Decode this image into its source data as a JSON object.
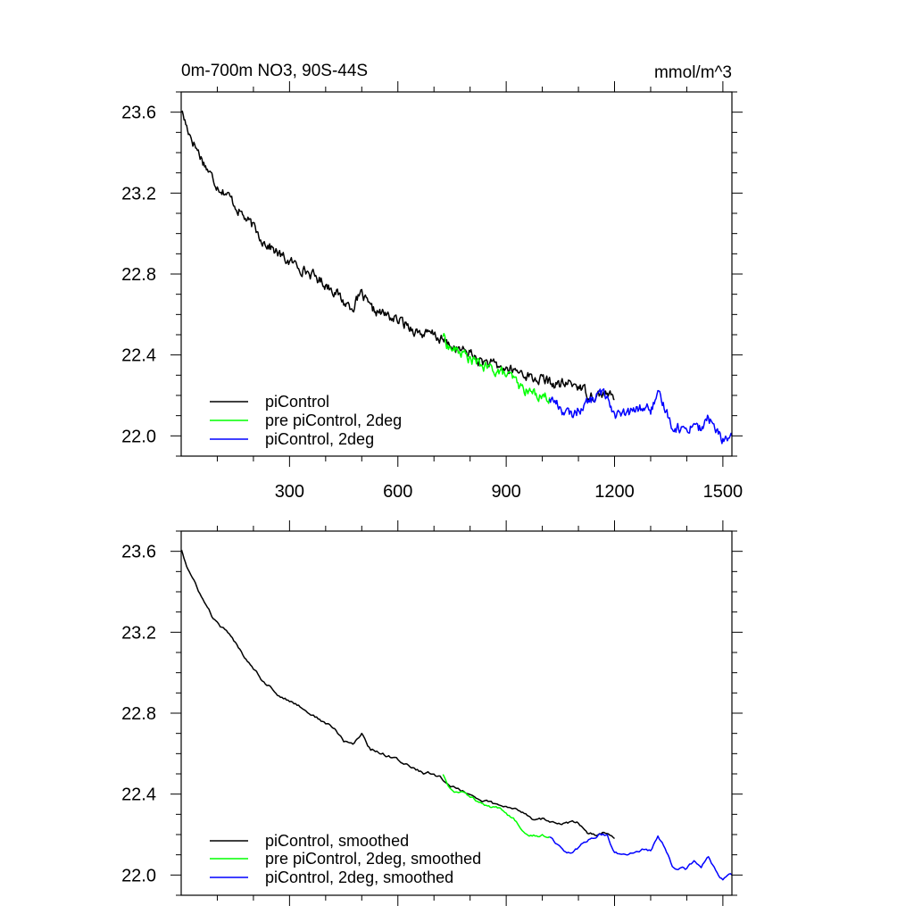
{
  "chart_data": [
    {
      "type": "line",
      "title": "0m-700m NO3, 90S-44S",
      "units": "mmol/m^3",
      "xlabel": "",
      "ylabel": "",
      "xlim": [
        0,
        1525
      ],
      "ylim": [
        21.9,
        23.7
      ],
      "xticks": [
        300,
        600,
        900,
        1200,
        1500
      ],
      "xtick_labels": [
        "300",
        "600",
        "900",
        "1200",
        "1500"
      ],
      "yticks": [
        22.0,
        22.4,
        22.8,
        23.2,
        23.6
      ],
      "ytick_labels": [
        "22.0",
        "22.4",
        "22.8",
        "23.2",
        "23.6"
      ],
      "legend_position": "bottom-left",
      "grid": false,
      "smoothed": false,
      "series": [
        {
          "name": "piControl",
          "color": "#000000",
          "x": [
            1,
            15,
            35,
            60,
            85,
            100,
            125,
            150,
            175,
            200,
            225,
            250,
            275,
            300,
            325,
            350,
            375,
            400,
            425,
            450,
            475,
            500,
            525,
            550,
            575,
            600,
            625,
            650,
            675,
            700,
            725,
            750,
            775,
            800,
            825,
            850,
            875,
            900,
            925,
            950,
            975,
            1000,
            1025,
            1050,
            1075,
            1100,
            1125,
            1150,
            1175,
            1200
          ],
          "values": [
            23.61,
            23.53,
            23.45,
            23.36,
            23.28,
            23.24,
            23.2,
            23.14,
            23.08,
            23.03,
            22.97,
            22.93,
            22.89,
            22.86,
            22.84,
            22.81,
            22.78,
            22.75,
            22.72,
            22.66,
            22.64,
            22.7,
            22.62,
            22.61,
            22.59,
            22.57,
            22.55,
            22.52,
            22.5,
            22.5,
            22.47,
            22.44,
            22.42,
            22.41,
            22.37,
            22.36,
            22.34,
            22.33,
            22.32,
            22.31,
            22.28,
            22.28,
            22.26,
            22.25,
            22.26,
            22.25,
            22.21,
            22.2,
            22.21,
            22.18
          ]
        },
        {
          "name": "pre piControl, 2deg",
          "color": "#00ff00",
          "x": [
            725,
            740,
            760,
            780,
            800,
            820,
            840,
            860,
            880,
            900,
            920,
            940,
            960,
            980,
            1000,
            1020
          ],
          "values": [
            22.5,
            22.44,
            22.42,
            22.41,
            22.38,
            22.36,
            22.34,
            22.33,
            22.32,
            22.3,
            22.28,
            22.24,
            22.22,
            22.21,
            22.2,
            22.19
          ]
        },
        {
          "name": "piControl, 2deg",
          "color": "#0000ff",
          "x": [
            1020,
            1040,
            1060,
            1080,
            1100,
            1120,
            1140,
            1160,
            1180,
            1200,
            1220,
            1240,
            1260,
            1280,
            1300,
            1320,
            1340,
            1360,
            1380,
            1400,
            1420,
            1440,
            1460,
            1480,
            1500,
            1525
          ],
          "values": [
            22.19,
            22.16,
            22.12,
            22.1,
            22.13,
            22.16,
            22.18,
            22.21,
            22.2,
            22.11,
            22.1,
            22.11,
            22.13,
            22.14,
            22.13,
            22.19,
            22.14,
            22.05,
            22.04,
            22.03,
            22.07,
            22.03,
            22.09,
            22.03,
            21.98,
            22.0
          ]
        }
      ]
    },
    {
      "type": "line",
      "title": "",
      "units": "",
      "xlabel": "",
      "ylabel": "",
      "xlim": [
        0,
        1525
      ],
      "ylim": [
        21.9,
        23.7
      ],
      "xticks": [
        300,
        600,
        900,
        1200,
        1500
      ],
      "xtick_labels": [],
      "yticks": [
        22.0,
        22.4,
        22.8,
        23.2,
        23.6
      ],
      "ytick_labels": [
        "22.0",
        "22.4",
        "22.8",
        "23.2",
        "23.6"
      ],
      "legend_position": "bottom-left",
      "grid": false,
      "smoothed": true,
      "series": [
        {
          "name": "piControl, smoothed",
          "color": "#000000",
          "x": [
            1,
            15,
            35,
            60,
            85,
            100,
            125,
            150,
            175,
            200,
            225,
            250,
            275,
            300,
            325,
            350,
            375,
            400,
            425,
            450,
            475,
            500,
            525,
            550,
            575,
            600,
            625,
            650,
            675,
            700,
            725,
            750,
            775,
            800,
            825,
            850,
            875,
            900,
            925,
            950,
            975,
            1000,
            1025,
            1050,
            1075,
            1100,
            1125,
            1150,
            1175,
            1200
          ],
          "values": [
            23.61,
            23.53,
            23.45,
            23.36,
            23.28,
            23.24,
            23.2,
            23.14,
            23.08,
            23.03,
            22.97,
            22.93,
            22.89,
            22.86,
            22.84,
            22.81,
            22.78,
            22.75,
            22.72,
            22.66,
            22.64,
            22.7,
            22.62,
            22.61,
            22.59,
            22.57,
            22.55,
            22.52,
            22.5,
            22.5,
            22.47,
            22.44,
            22.42,
            22.41,
            22.37,
            22.36,
            22.34,
            22.33,
            22.32,
            22.31,
            22.28,
            22.28,
            22.26,
            22.25,
            22.26,
            22.25,
            22.21,
            22.2,
            22.21,
            22.18
          ]
        },
        {
          "name": "pre piControl, 2deg, smoothed",
          "color": "#00ff00",
          "x": [
            725,
            740,
            760,
            780,
            800,
            820,
            840,
            860,
            880,
            900,
            920,
            940,
            960,
            980,
            1000,
            1020
          ],
          "values": [
            22.5,
            22.44,
            22.42,
            22.41,
            22.38,
            22.36,
            22.34,
            22.33,
            22.32,
            22.3,
            22.28,
            22.24,
            22.22,
            22.21,
            22.2,
            22.19
          ]
        },
        {
          "name": "piControl, 2deg, smoothed",
          "color": "#0000ff",
          "x": [
            1020,
            1040,
            1060,
            1080,
            1100,
            1120,
            1140,
            1160,
            1180,
            1200,
            1220,
            1240,
            1260,
            1280,
            1300,
            1320,
            1340,
            1360,
            1380,
            1400,
            1420,
            1440,
            1460,
            1480,
            1500,
            1525
          ],
          "values": [
            22.19,
            22.16,
            22.12,
            22.1,
            22.13,
            22.16,
            22.18,
            22.21,
            22.2,
            22.11,
            22.1,
            22.11,
            22.13,
            22.14,
            22.13,
            22.19,
            22.14,
            22.05,
            22.04,
            22.03,
            22.07,
            22.03,
            22.09,
            22.03,
            21.98,
            22.0
          ]
        }
      ]
    }
  ]
}
